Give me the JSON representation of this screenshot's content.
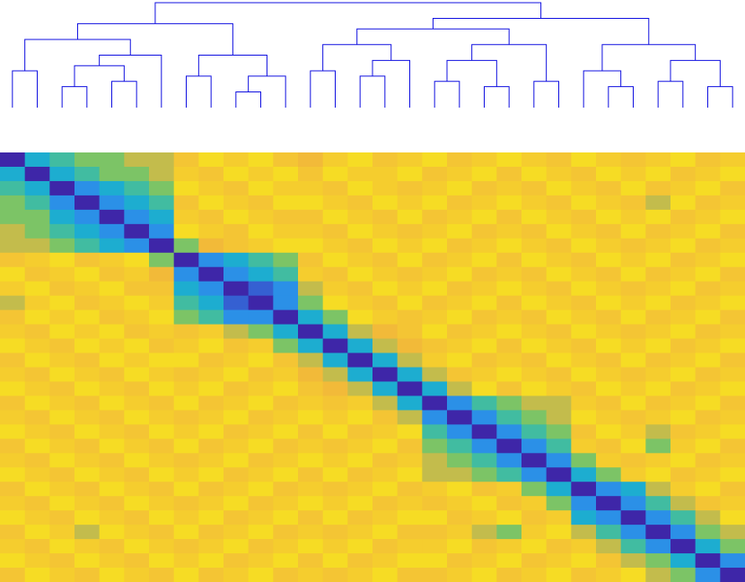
{
  "chart_data": {
    "type": "heatmap",
    "clim": [
      0,
      1
    ],
    "colormap": [
      "#3e26a8",
      "#2f86ee",
      "#19b7c9",
      "#7cc466",
      "#f2b73b",
      "#f4c832",
      "#f9fb0e"
    ],
    "link_color": "#1010e0",
    "dendrogram": [
      [
        2,
        3,
        0.2
      ],
      [
        4,
        5,
        0.25
      ],
      [
        30,
        31,
        0.4
      ],
      [
        0,
        1,
        0.35
      ],
      [
        32,
        6,
        0.5
      ],
      [
        33,
        34,
        0.65
      ],
      [
        9,
        10,
        0.15
      ],
      [
        36,
        11,
        0.3
      ],
      [
        7,
        8,
        0.3
      ],
      [
        38,
        37,
        0.5
      ],
      [
        12,
        13,
        0.35
      ],
      [
        14,
        15,
        0.3
      ],
      [
        41,
        16,
        0.45
      ],
      [
        40,
        42,
        0.6
      ],
      [
        17,
        18,
        0.25
      ],
      [
        19,
        20,
        0.2
      ],
      [
        21,
        22,
        0.25
      ],
      [
        44,
        45,
        0.45
      ],
      [
        47,
        46,
        0.6
      ],
      [
        24,
        25,
        0.2
      ],
      [
        23,
        49,
        0.35
      ],
      [
        26,
        27,
        0.25
      ],
      [
        28,
        29,
        0.2
      ],
      [
        51,
        52,
        0.45
      ],
      [
        35,
        39,
        0.8
      ],
      [
        43,
        48,
        0.75
      ],
      [
        50,
        53,
        0.6
      ],
      [
        55,
        56,
        0.85
      ],
      [
        54,
        57,
        1
      ]
    ],
    "matrix": [
      [
        0,
        0.3,
        0.4,
        0.5,
        0.5,
        0.6,
        0.6,
        0.8,
        0.9,
        0.85,
        0.9,
        0.8,
        0.7,
        0.85,
        0.9,
        0.8,
        0.85,
        0.9,
        0.8,
        0.85,
        0.9,
        0.85,
        0.8,
        0.9,
        0.85,
        0.8,
        0.85,
        0.9,
        0.8,
        0.85
      ],
      [
        0.3,
        0,
        0.3,
        0.4,
        0.5,
        0.5,
        0.6,
        0.85,
        0.8,
        0.9,
        0.85,
        0.9,
        0.8,
        0.9,
        0.85,
        0.85,
        0.9,
        0.8,
        0.85,
        0.9,
        0.8,
        0.9,
        0.85,
        0.8,
        0.9,
        0.85,
        0.9,
        0.8,
        0.85,
        0.9
      ],
      [
        0.4,
        0.3,
        0,
        0.2,
        0.3,
        0.4,
        0.5,
        0.9,
        0.85,
        0.8,
        0.9,
        0.85,
        0.85,
        0.8,
        0.9,
        0.85,
        0.8,
        0.85,
        0.9,
        0.8,
        0.85,
        0.8,
        0.9,
        0.85,
        0.8,
        0.9,
        0.8,
        0.85,
        0.9,
        0.8
      ],
      [
        0.5,
        0.4,
        0.2,
        0,
        0.2,
        0.3,
        0.4,
        0.8,
        0.9,
        0.85,
        0.8,
        0.9,
        0.9,
        0.85,
        0.8,
        0.9,
        0.85,
        0.9,
        0.8,
        0.85,
        0.9,
        0.85,
        0.8,
        0.9,
        0.85,
        0.8,
        0.6,
        0.9,
        0.8,
        0.85
      ],
      [
        0.5,
        0.5,
        0.3,
        0.2,
        0,
        0.2,
        0.3,
        0.85,
        0.8,
        0.9,
        0.85,
        0.8,
        0.8,
        0.9,
        0.85,
        0.8,
        0.9,
        0.8,
        0.85,
        0.9,
        0.8,
        0.9,
        0.85,
        0.8,
        0.9,
        0.85,
        0.9,
        0.8,
        0.85,
        0.9
      ],
      [
        0.6,
        0.5,
        0.4,
        0.3,
        0.2,
        0,
        0.2,
        0.9,
        0.85,
        0.8,
        0.9,
        0.85,
        0.85,
        0.8,
        0.9,
        0.85,
        0.8,
        0.85,
        0.9,
        0.8,
        0.85,
        0.8,
        0.9,
        0.85,
        0.8,
        0.9,
        0.8,
        0.85,
        0.9,
        0.8
      ],
      [
        0.6,
        0.6,
        0.5,
        0.4,
        0.3,
        0.2,
        0,
        0.5,
        0.7,
        0.8,
        0.85,
        0.9,
        0.9,
        0.85,
        0.8,
        0.9,
        0.85,
        0.9,
        0.8,
        0.85,
        0.9,
        0.85,
        0.8,
        0.9,
        0.85,
        0.8,
        0.85,
        0.9,
        0.8,
        0.85
      ],
      [
        0.8,
        0.85,
        0.9,
        0.8,
        0.85,
        0.9,
        0.5,
        0,
        0.2,
        0.3,
        0.4,
        0.5,
        0.8,
        0.9,
        0.85,
        0.8,
        0.9,
        0.8,
        0.85,
        0.9,
        0.8,
        0.9,
        0.85,
        0.8,
        0.9,
        0.85,
        0.9,
        0.8,
        0.85,
        0.9
      ],
      [
        0.9,
        0.8,
        0.85,
        0.9,
        0.8,
        0.85,
        0.7,
        0.2,
        0,
        0.2,
        0.3,
        0.4,
        0.85,
        0.8,
        0.9,
        0.85,
        0.8,
        0.85,
        0.9,
        0.8,
        0.85,
        0.8,
        0.9,
        0.85,
        0.8,
        0.9,
        0.8,
        0.85,
        0.9,
        0.8
      ],
      [
        0.85,
        0.9,
        0.8,
        0.85,
        0.9,
        0.8,
        0.8,
        0.3,
        0.2,
        0,
        0.1,
        0.2,
        0.6,
        0.85,
        0.8,
        0.9,
        0.85,
        0.9,
        0.8,
        0.85,
        0.9,
        0.85,
        0.8,
        0.9,
        0.85,
        0.8,
        0.85,
        0.9,
        0.8,
        0.85
      ],
      [
        0.6,
        0.85,
        0.9,
        0.8,
        0.85,
        0.9,
        0.85,
        0.4,
        0.3,
        0.1,
        0,
        0.2,
        0.5,
        0.9,
        0.85,
        0.8,
        0.9,
        0.8,
        0.85,
        0.9,
        0.8,
        0.9,
        0.85,
        0.8,
        0.9,
        0.85,
        0.9,
        0.8,
        0.85,
        0.9
      ],
      [
        0.8,
        0.9,
        0.85,
        0.9,
        0.8,
        0.85,
        0.9,
        0.5,
        0.4,
        0.2,
        0.2,
        0,
        0.3,
        0.5,
        0.9,
        0.85,
        0.8,
        0.85,
        0.9,
        0.8,
        0.85,
        0.8,
        0.9,
        0.85,
        0.8,
        0.9,
        0.8,
        0.85,
        0.9,
        0.8
      ],
      [
        0.85,
        0.8,
        0.9,
        0.85,
        0.9,
        0.8,
        0.85,
        0.8,
        0.85,
        0.6,
        0.5,
        0.3,
        0,
        0.3,
        0.6,
        0.7,
        0.8,
        0.9,
        0.8,
        0.85,
        0.9,
        0.85,
        0.8,
        0.9,
        0.85,
        0.8,
        0.85,
        0.9,
        0.8,
        0.85
      ],
      [
        0.9,
        0.85,
        0.8,
        0.9,
        0.85,
        0.9,
        0.8,
        0.85,
        0.9,
        0.8,
        0.85,
        0.5,
        0.3,
        0,
        0.3,
        0.6,
        0.7,
        0.8,
        0.85,
        0.9,
        0.8,
        0.9,
        0.85,
        0.8,
        0.9,
        0.85,
        0.9,
        0.8,
        0.85,
        0.9
      ],
      [
        0.8,
        0.9,
        0.85,
        0.8,
        0.9,
        0.85,
        0.9,
        0.9,
        0.8,
        0.85,
        0.9,
        0.8,
        0.6,
        0.3,
        0,
        0.3,
        0.6,
        0.85,
        0.9,
        0.8,
        0.85,
        0.8,
        0.9,
        0.85,
        0.8,
        0.9,
        0.8,
        0.85,
        0.9,
        0.8
      ],
      [
        0.85,
        0.8,
        0.9,
        0.85,
        0.8,
        0.9,
        0.85,
        0.8,
        0.85,
        0.9,
        0.8,
        0.85,
        0.7,
        0.6,
        0.3,
        0,
        0.3,
        0.6,
        0.8,
        0.85,
        0.9,
        0.85,
        0.8,
        0.9,
        0.85,
        0.8,
        0.85,
        0.9,
        0.8,
        0.85
      ],
      [
        0.9,
        0.85,
        0.8,
        0.9,
        0.85,
        0.8,
        0.9,
        0.85,
        0.9,
        0.8,
        0.85,
        0.9,
        0.8,
        0.7,
        0.6,
        0.3,
        0,
        0.3,
        0.6,
        0.9,
        0.8,
        0.9,
        0.85,
        0.8,
        0.9,
        0.85,
        0.9,
        0.8,
        0.85,
        0.9
      ],
      [
        0.8,
        0.9,
        0.85,
        0.8,
        0.9,
        0.85,
        0.8,
        0.9,
        0.8,
        0.85,
        0.9,
        0.8,
        0.85,
        0.8,
        0.85,
        0.6,
        0.3,
        0,
        0.2,
        0.4,
        0.5,
        0.6,
        0.6,
        0.85,
        0.8,
        0.9,
        0.8,
        0.85,
        0.9,
        0.8
      ],
      [
        0.85,
        0.8,
        0.9,
        0.85,
        0.8,
        0.9,
        0.85,
        0.8,
        0.85,
        0.9,
        0.8,
        0.85,
        0.9,
        0.85,
        0.9,
        0.8,
        0.6,
        0.2,
        0,
        0.2,
        0.4,
        0.5,
        0.6,
        0.9,
        0.85,
        0.8,
        0.85,
        0.9,
        0.8,
        0.85
      ],
      [
        0.9,
        0.85,
        0.8,
        0.9,
        0.85,
        0.8,
        0.9,
        0.85,
        0.9,
        0.8,
        0.85,
        0.9,
        0.8,
        0.9,
        0.8,
        0.85,
        0.9,
        0.4,
        0.2,
        0,
        0.2,
        0.4,
        0.5,
        0.8,
        0.9,
        0.85,
        0.6,
        0.8,
        0.85,
        0.9
      ],
      [
        0.8,
        0.9,
        0.85,
        0.8,
        0.9,
        0.85,
        0.8,
        0.9,
        0.8,
        0.85,
        0.9,
        0.8,
        0.85,
        0.8,
        0.85,
        0.9,
        0.8,
        0.5,
        0.4,
        0.2,
        0,
        0.2,
        0.4,
        0.85,
        0.8,
        0.9,
        0.5,
        0.85,
        0.9,
        0.8
      ],
      [
        0.85,
        0.8,
        0.9,
        0.85,
        0.8,
        0.9,
        0.85,
        0.8,
        0.85,
        0.9,
        0.8,
        0.85,
        0.9,
        0.85,
        0.9,
        0.8,
        0.85,
        0.6,
        0.5,
        0.4,
        0.2,
        0,
        0.2,
        0.5,
        0.85,
        0.8,
        0.85,
        0.9,
        0.8,
        0.85
      ],
      [
        0.9,
        0.85,
        0.8,
        0.9,
        0.85,
        0.8,
        0.9,
        0.85,
        0.9,
        0.8,
        0.85,
        0.9,
        0.8,
        0.9,
        0.8,
        0.85,
        0.9,
        0.6,
        0.6,
        0.5,
        0.4,
        0.2,
        0,
        0.3,
        0.5,
        0.85,
        0.9,
        0.8,
        0.85,
        0.9
      ],
      [
        0.8,
        0.9,
        0.85,
        0.8,
        0.9,
        0.85,
        0.8,
        0.9,
        0.8,
        0.85,
        0.9,
        0.8,
        0.85,
        0.8,
        0.85,
        0.9,
        0.8,
        0.85,
        0.9,
        0.8,
        0.85,
        0.5,
        0.3,
        0,
        0.2,
        0.3,
        0.6,
        0.85,
        0.9,
        0.8
      ],
      [
        0.85,
        0.8,
        0.9,
        0.85,
        0.8,
        0.9,
        0.85,
        0.8,
        0.85,
        0.9,
        0.8,
        0.85,
        0.9,
        0.85,
        0.9,
        0.8,
        0.85,
        0.8,
        0.85,
        0.9,
        0.8,
        0.85,
        0.5,
        0.2,
        0,
        0.2,
        0.4,
        0.6,
        0.8,
        0.85
      ],
      [
        0.9,
        0.85,
        0.8,
        0.9,
        0.85,
        0.8,
        0.9,
        0.85,
        0.9,
        0.8,
        0.85,
        0.9,
        0.8,
        0.9,
        0.8,
        0.85,
        0.9,
        0.9,
        0.8,
        0.85,
        0.9,
        0.8,
        0.85,
        0.3,
        0.2,
        0,
        0.2,
        0.4,
        0.6,
        0.9
      ],
      [
        0.8,
        0.9,
        0.85,
        0.6,
        0.9,
        0.85,
        0.8,
        0.9,
        0.8,
        0.85,
        0.9,
        0.8,
        0.85,
        0.8,
        0.85,
        0.9,
        0.8,
        0.8,
        0.85,
        0.6,
        0.5,
        0.85,
        0.9,
        0.6,
        0.4,
        0.2,
        0,
        0.2,
        0.5,
        0.6
      ],
      [
        0.85,
        0.8,
        0.9,
        0.85,
        0.8,
        0.9,
        0.85,
        0.8,
        0.85,
        0.9,
        0.8,
        0.85,
        0.9,
        0.85,
        0.9,
        0.8,
        0.85,
        0.85,
        0.9,
        0.8,
        0.85,
        0.9,
        0.8,
        0.85,
        0.6,
        0.4,
        0.2,
        0,
        0.3,
        0.5
      ],
      [
        0.9,
        0.85,
        0.8,
        0.9,
        0.85,
        0.8,
        0.9,
        0.85,
        0.9,
        0.8,
        0.85,
        0.9,
        0.8,
        0.9,
        0.8,
        0.85,
        0.9,
        0.9,
        0.8,
        0.85,
        0.9,
        0.8,
        0.85,
        0.9,
        0.8,
        0.6,
        0.5,
        0.3,
        0,
        0.2
      ],
      [
        0.8,
        0.9,
        0.85,
        0.8,
        0.9,
        0.85,
        0.8,
        0.9,
        0.8,
        0.85,
        0.9,
        0.8,
        0.85,
        0.8,
        0.85,
        0.9,
        0.8,
        0.8,
        0.85,
        0.9,
        0.8,
        0.85,
        0.9,
        0.8,
        0.85,
        0.9,
        0.6,
        0.5,
        0.2,
        0
      ]
    ]
  }
}
